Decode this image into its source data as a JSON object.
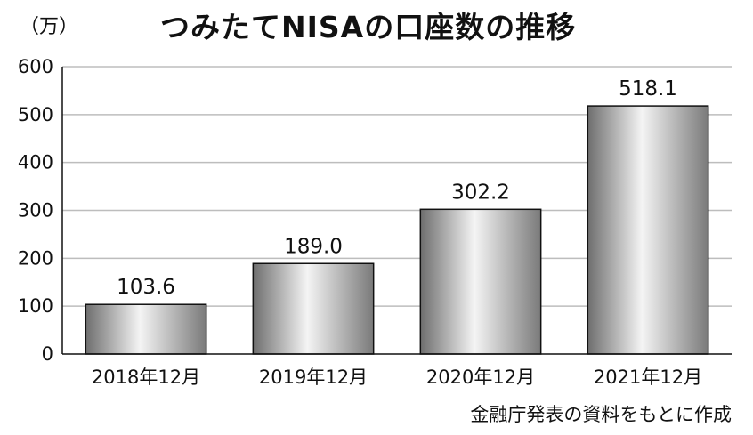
{
  "chart_data": {
    "type": "bar",
    "title": "つみたてNISAの口座数の推移",
    "unit_label": "（万）",
    "categories": [
      "2018年12月",
      "2019年12月",
      "2020年12月",
      "2021年12月"
    ],
    "values": [
      103.6,
      189.0,
      302.2,
      518.1
    ],
    "value_labels": [
      "103.6",
      "189.0",
      "302.2",
      "518.1"
    ],
    "ylim": [
      0,
      600
    ],
    "yticks": [
      0,
      100,
      200,
      300,
      400,
      500,
      600
    ],
    "grid": true,
    "source": "金融庁発表の資料をもとに作成",
    "colors": {
      "bar_edge": "#111111",
      "bar_dark": "#6e6e6e",
      "bar_light": "#f4f4f4",
      "grid": "#bdbdbd"
    }
  }
}
